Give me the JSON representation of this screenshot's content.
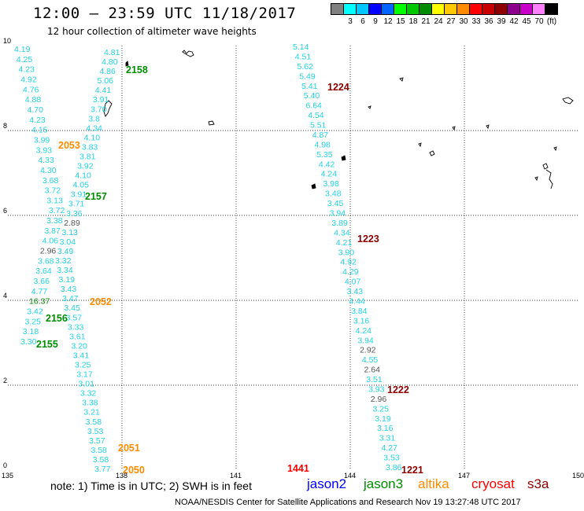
{
  "header": {
    "title": "12:00 – 23:59 UTC 11/18/2017",
    "subtitle": "12 hour collection of altimeter wave heights"
  },
  "color_scale": {
    "unit": "(ft)",
    "colors": [
      "#808080",
      "#00ffff",
      "#00c8ff",
      "#0000ff",
      "#0064ff",
      "#00ff00",
      "#00c800",
      "#008c00",
      "#ffff00",
      "#ffc800",
      "#ff8c00",
      "#ff0000",
      "#c80000",
      "#8c0000",
      "#8c008c",
      "#c800c8",
      "#ff80ff",
      "#000000"
    ],
    "labels": [
      "3",
      "6",
      "9",
      "12",
      "15",
      "18",
      "21",
      "24",
      "27",
      "30",
      "33",
      "36",
      "39",
      "42",
      "45",
      "70"
    ]
  },
  "axes": {
    "x_ticks": [
      "135",
      "138",
      "141",
      "144",
      "147",
      "150"
    ],
    "y_ticks": [
      "0",
      "2",
      "4",
      "6",
      "8",
      "10"
    ]
  },
  "track_labels": {
    "green": [
      "2158",
      "2157",
      "2156",
      "2155"
    ],
    "orange": [
      "2053",
      "2052",
      "2051",
      "2050"
    ],
    "darkred": [
      "1224",
      "1223",
      "1222",
      "1221",
      "1441"
    ]
  },
  "heights": {
    "track_a": [
      "4.81",
      "4.80",
      "4.86",
      "5.06",
      "4.41",
      "3.91",
      "3.70",
      "3.8",
      "4.34",
      "4.10",
      "3.83",
      "3.81",
      "3.92",
      "4.10",
      "4.05",
      "3.91",
      "3.71",
      "3.36",
      "2.89",
      "3.13",
      "3.04",
      "3.49",
      "3.32",
      "3.34",
      "3.19",
      "3.43",
      "3.47",
      "3.45",
      "3.57",
      "3.33",
      "3.61",
      "3.20",
      "3.41",
      "3.25",
      "3.17",
      "3.01",
      "3.32",
      "3.38",
      "3.21",
      "3.58",
      "3.53",
      "3.57",
      "3.58",
      "3.58",
      "3.77"
    ],
    "track_b": [
      "4.19",
      "4.25",
      "4.23",
      "4.92",
      "4.76",
      "4.88",
      "4.70",
      "4.23",
      "4.15",
      "3.99",
      "3.93",
      "4.33",
      "4.30",
      "3.68",
      "3.72",
      "3.13",
      "3.72",
      "3.38",
      "3.87",
      "4.06",
      "2.96",
      "3.68",
      "3.64",
      "3.66",
      "4.77",
      "16.37",
      "3.42",
      "3.25",
      "3.18",
      "3.30"
    ],
    "track_c": [
      "5.14",
      "4.51",
      "5.62",
      "5.49",
      "5.41",
      "5.40",
      "6.64",
      "4.54",
      "5.51",
      "4.87",
      "4.98",
      "5.35",
      "4.42",
      "4.24",
      "3.98",
      "3.48",
      "3.45",
      "3.94",
      "3.89",
      "4.34",
      "4.21",
      "3.90",
      "4.92",
      "4.29",
      "4.07",
      "3.43",
      "4.44",
      "3.84",
      "3.16",
      "4.24",
      "3.94",
      "2.92",
      "4.55",
      "2.64",
      "3.51",
      "3.93",
      "2.96",
      "3.25",
      "3.19",
      "3.16",
      "3.31",
      "4.27",
      "3.53",
      "3.86"
    ]
  },
  "satellites": [
    {
      "name": "jason2",
      "color": "#0000ff"
    },
    {
      "name": "jason3",
      "color": "#008c00"
    },
    {
      "name": "altika",
      "color": "#ff8c00"
    },
    {
      "name": "cryosat",
      "color": "#ff0000"
    },
    {
      "name": "s3a",
      "color": "#8c0000"
    }
  ],
  "footer": {
    "note": "note: 1) Time is in UTC; 2) SWH is in feet",
    "credit": "NOAA/NESDIS Center for Satellite Applications and Research   Nov 19 13:27:48 UTC 2017"
  }
}
